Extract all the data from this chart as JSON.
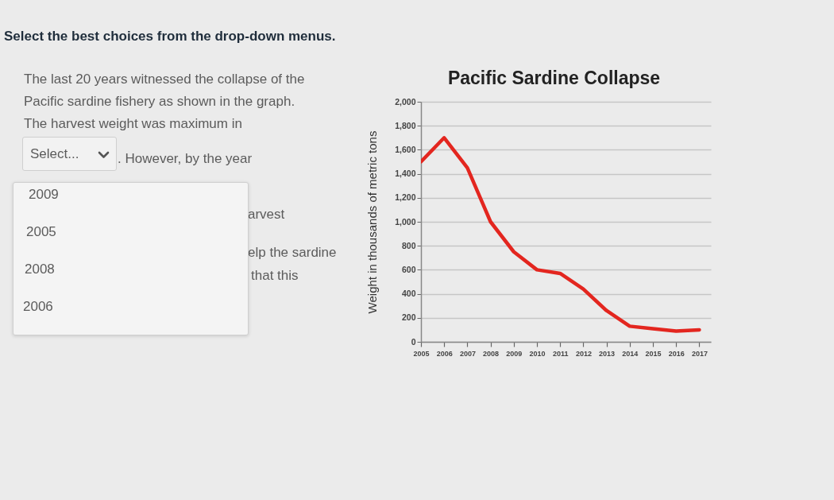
{
  "chart_data": {
    "type": "line",
    "title": "Pacific Sardine Collapse",
    "ylabel": "Weight in thousands of metric tons",
    "x": [
      2005,
      2006,
      2007,
      2008,
      2009,
      2010,
      2011,
      2012,
      2013,
      2014,
      2015,
      2016,
      2017
    ],
    "series": [
      {
        "color": "#e3261f",
        "values": [
          1500,
          1700,
          1450,
          1000,
          750,
          600,
          570,
          440,
          260,
          130,
          110,
          90,
          100
        ]
      }
    ],
    "xlim": [
      2005,
      2017.5
    ],
    "xticks": [
      2005,
      2006,
      2007,
      2008,
      2009,
      2010,
      2011,
      2012,
      2013,
      2014,
      2015,
      2016,
      2017
    ],
    "ylim": [
      0,
      2000
    ],
    "yticks": [
      0,
      200,
      400,
      600,
      800,
      {
        "value": 1000,
        "label": "1,000"
      },
      {
        "value": 1200,
        "label": "1,200"
      },
      {
        "value": 1400,
        "label": "1,400"
      },
      {
        "value": 1600,
        "label": "1,600"
      },
      {
        "value": 1800,
        "label": "1,800"
      },
      {
        "value": 2000,
        "label": "2,000"
      }
    ],
    "grid": "y",
    "annotations": [
      "Select the best choices from the drop-down menus.",
      "The last 20 years witnessed the collapse of the",
      "Pacific sardine fishery as shown in the graph.",
      "The harvest weight was maximum in",
      "Select...",
      ". However, by the year",
      "2009",
      "2005",
      "2008",
      "2006",
      "arvest",
      "elp the sardine",
      "that this"
    ]
  }
}
